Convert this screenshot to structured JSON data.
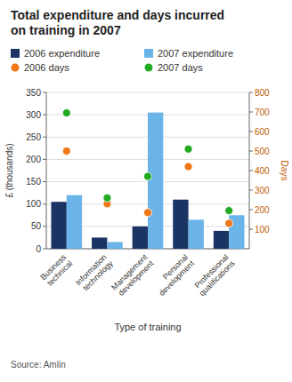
{
  "chart_data": {
    "type": "bar",
    "title": "Total expenditure and days incurred\non training in 2007",
    "categories": [
      "Business\ntechnical",
      "Information\ntechnology",
      "Management\ndevelopment",
      "Personal\ndevelopment",
      "Professional\nqualifications"
    ],
    "series": [
      {
        "name": "2006 expenditure",
        "color": "#1a3464",
        "values": [
          105,
          25,
          50,
          110,
          40
        ]
      },
      {
        "name": "2007 expenditure",
        "color": "#6ab4e8",
        "values": [
          120,
          15,
          305,
          65,
          75
        ]
      },
      {
        "name": "2006 days",
        "type": "scatter",
        "axis": "y2",
        "color": "#f07818",
        "values": [
          500,
          230,
          185,
          420,
          130
        ]
      },
      {
        "name": "2007 days",
        "type": "scatter",
        "axis": "y2",
        "color": "#22aa22",
        "values": [
          695,
          260,
          370,
          510,
          195
        ]
      }
    ],
    "xlabel": "Type of training",
    "ylabel": "£ (thousands)",
    "y2label": "Days",
    "ylim": [
      0,
      350
    ],
    "yticks": [
      0,
      50,
      100,
      150,
      200,
      250,
      300,
      350
    ],
    "y2lim": [
      0,
      800
    ],
    "y2ticks": [
      100,
      200,
      300,
      400,
      500,
      600,
      700,
      800
    ],
    "grid": true,
    "source": "Source: Amlin"
  }
}
